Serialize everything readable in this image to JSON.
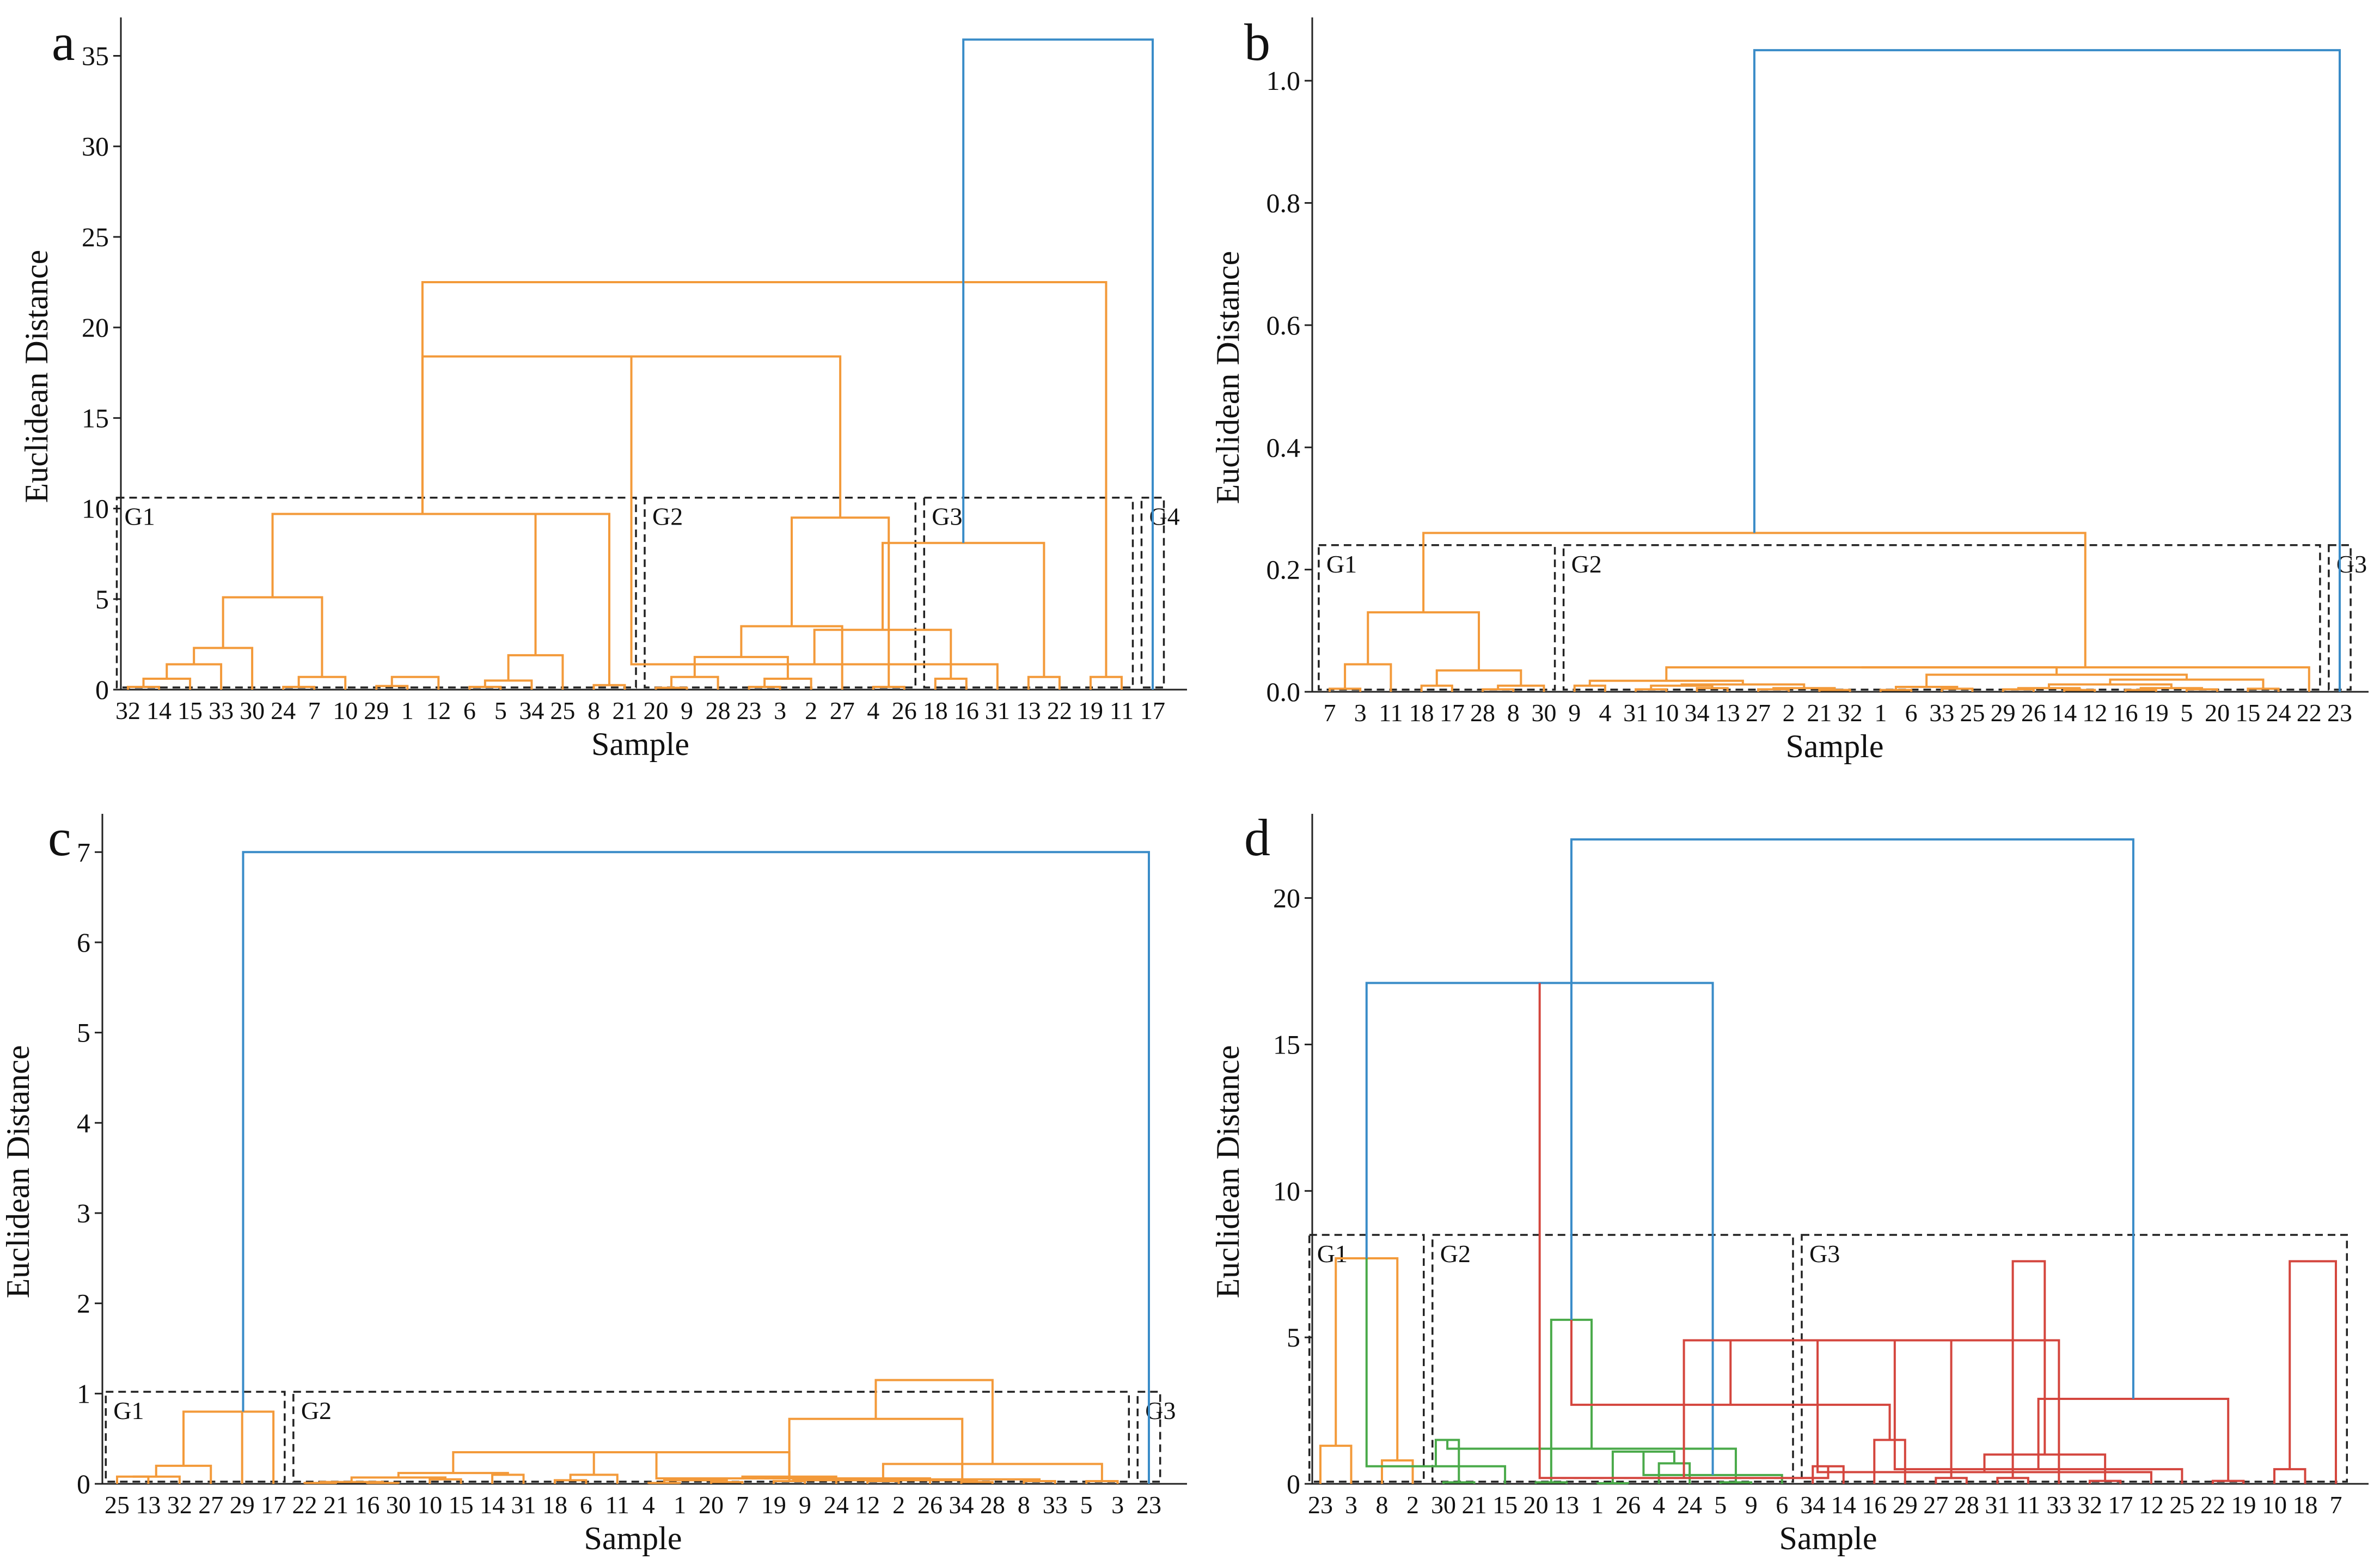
{
  "figure": {
    "axis_ylabel": "Euclidean Distance",
    "axis_xlabel": "Sample",
    "colors": {
      "orange": "#f39a3a",
      "blue": "#3a8cc8",
      "green": "#4aaa4a",
      "red": "#d4463e",
      "box": "#222222",
      "axis": "#222222"
    }
  },
  "chart_data": [
    {
      "type": "dendrogram",
      "panel_label": "a",
      "xlabel": "Sample",
      "ylabel": "Euclidean Distance",
      "ylim": [
        0,
        37
      ],
      "yticks": [
        0,
        5,
        10,
        15,
        20,
        25,
        30,
        35
      ],
      "tick_labels": [
        "0",
        "5",
        "10",
        "15",
        "20",
        "25",
        "30",
        "35"
      ],
      "leaves": [
        "32",
        "14",
        "15",
        "33",
        "30",
        "24",
        "7",
        "10",
        "29",
        "1",
        "12",
        "6",
        "5",
        "34",
        "25",
        "8",
        "21",
        "20",
        "9",
        "28",
        "23",
        "3",
        "2",
        "27",
        "4",
        "26",
        "18",
        "16",
        "31",
        "13",
        "22",
        "19",
        "11",
        "17"
      ],
      "merges": [
        [
          0,
          1,
          0.15,
          "orange"
        ],
        [
          2,
          34,
          0.6,
          "orange"
        ],
        [
          3,
          35,
          1.4,
          "orange"
        ],
        [
          4,
          36,
          2.3,
          "orange"
        ],
        [
          5,
          6,
          0.15,
          "orange"
        ],
        [
          7,
          38,
          0.7,
          "orange"
        ],
        [
          37,
          39,
          5.1,
          "orange"
        ],
        [
          8,
          9,
          0.2,
          "orange"
        ],
        [
          10,
          41,
          0.7,
          "orange"
        ],
        [
          11,
          12,
          0.15,
          "orange"
        ],
        [
          13,
          43,
          0.5,
          "orange"
        ],
        [
          14,
          44,
          1.9,
          "orange"
        ],
        [
          15,
          16,
          0.25,
          "orange"
        ],
        [
          45,
          46,
          9.7,
          "orange"
        ],
        [
          40,
          47,
          9.7,
          "orange"
        ],
        [
          17,
          18,
          0.1,
          "orange"
        ],
        [
          19,
          49,
          0.7,
          "orange"
        ],
        [
          20,
          21,
          0.15,
          "orange"
        ],
        [
          22,
          51,
          0.6,
          "orange"
        ],
        [
          50,
          52,
          1.8,
          "orange"
        ],
        [
          53,
          23,
          3.5,
          "orange"
        ],
        [
          24,
          25,
          0.15,
          "orange"
        ],
        [
          54,
          55,
          9.5,
          "orange"
        ],
        [
          48,
          56,
          18.4,
          "orange"
        ],
        [
          26,
          27,
          0.6,
          "orange"
        ],
        [
          57,
          28,
          1.4,
          "orange"
        ],
        [
          29,
          30,
          0.7,
          "orange"
        ],
        [
          58,
          59,
          3.3,
          "orange"
        ],
        [
          31,
          32,
          0.7,
          "orange"
        ],
        [
          60,
          61,
          8.1,
          "orange"
        ],
        [
          48,
          62,
          22.5,
          "orange"
        ],
        [
          63,
          33,
          35.9,
          "blue"
        ]
      ],
      "groups": [
        {
          "label": "G1",
          "from": 0,
          "to": 16,
          "top": 10.6
        },
        {
          "label": "G2",
          "from": 17,
          "to": 25,
          "top": 10.6
        },
        {
          "label": "G3",
          "from": 26,
          "to": 32,
          "top": 10.6
        },
        {
          "label": "G4",
          "from": 33,
          "to": 33,
          "top": 10.6
        }
      ]
    },
    {
      "type": "dendrogram",
      "panel_label": "b",
      "xlabel": "Sample",
      "ylabel": "Euclidean Distance",
      "ylim": [
        0,
        1.1
      ],
      "yticks": [
        0,
        0.2,
        0.4,
        0.6,
        0.8,
        1.0
      ],
      "tick_labels": [
        "0.0",
        "0.2",
        "0.4",
        "0.6",
        "0.8",
        "1.0"
      ],
      "leaves": [
        "7",
        "3",
        "11",
        "18",
        "17",
        "28",
        "8",
        "30",
        "9",
        "4",
        "31",
        "10",
        "34",
        "13",
        "27",
        "2",
        "21",
        "32",
        "1",
        "6",
        "33",
        "25",
        "29",
        "26",
        "14",
        "12",
        "16",
        "19",
        "5",
        "20",
        "15",
        "24",
        "22",
        "23"
      ],
      "merges": [
        [
          0,
          1,
          0.005,
          "orange"
        ],
        [
          2,
          34,
          0.045,
          "orange"
        ],
        [
          3,
          4,
          0.01,
          "orange"
        ],
        [
          5,
          6,
          0.004,
          "orange"
        ],
        [
          7,
          37,
          0.01,
          "orange"
        ],
        [
          36,
          38,
          0.035,
          "orange"
        ],
        [
          35,
          39,
          0.13,
          "orange"
        ],
        [
          8,
          9,
          0.01,
          "orange"
        ],
        [
          10,
          11,
          0.004,
          "orange"
        ],
        [
          12,
          13,
          0.006,
          "orange"
        ],
        [
          42,
          43,
          0.01,
          "orange"
        ],
        [
          14,
          15,
          0.004,
          "orange"
        ],
        [
          16,
          17,
          0.003,
          "orange"
        ],
        [
          45,
          46,
          0.006,
          "orange"
        ],
        [
          44,
          47,
          0.012,
          "orange"
        ],
        [
          41,
          48,
          0.018,
          "orange"
        ],
        [
          18,
          19,
          0.003,
          "orange"
        ],
        [
          20,
          21,
          0.005,
          "orange"
        ],
        [
          50,
          51,
          0.008,
          "orange"
        ],
        [
          22,
          23,
          0.004,
          "orange"
        ],
        [
          24,
          25,
          0.003,
          "orange"
        ],
        [
          53,
          54,
          0.006,
          "orange"
        ],
        [
          26,
          27,
          0.003,
          "orange"
        ],
        [
          28,
          29,
          0.004,
          "orange"
        ],
        [
          56,
          57,
          0.006,
          "orange"
        ],
        [
          55,
          58,
          0.012,
          "orange"
        ],
        [
          30,
          31,
          0.005,
          "orange"
        ],
        [
          59,
          60,
          0.02,
          "orange"
        ],
        [
          52,
          61,
          0.028,
          "orange"
        ],
        [
          49,
          62,
          0.04,
          "orange"
        ],
        [
          63,
          32,
          0.04,
          "orange"
        ],
        [
          40,
          64,
          0.26,
          "orange"
        ],
        [
          65,
          33,
          1.05,
          "blue"
        ]
      ],
      "groups": [
        {
          "label": "G1",
          "from": 0,
          "to": 7,
          "top": 0.24
        },
        {
          "label": "G2",
          "from": 8,
          "to": 32,
          "top": 0.24
        },
        {
          "label": "G3",
          "from": 33,
          "to": 33,
          "top": 0.24
        }
      ]
    },
    {
      "type": "dendrogram",
      "panel_label": "c",
      "xlabel": "Sample",
      "ylabel": "Euclidean Distance",
      "ylim": [
        0,
        7.4
      ],
      "yticks": [
        0,
        1,
        2,
        3,
        4,
        5,
        6,
        7
      ],
      "tick_labels": [
        "0",
        "1",
        "2",
        "3",
        "4",
        "5",
        "6",
        "7"
      ],
      "leaves": [
        "25",
        "13",
        "32",
        "27",
        "29",
        "17",
        "22",
        "21",
        "16",
        "30",
        "10",
        "15",
        "14",
        "31",
        "18",
        "6",
        "11",
        "4",
        "1",
        "20",
        "7",
        "19",
        "9",
        "24",
        "12",
        "2",
        "26",
        "34",
        "28",
        "8",
        "33",
        "5",
        "3",
        "23"
      ],
      "merges": [
        [
          0,
          1,
          0.08,
          "orange"
        ],
        [
          2,
          34,
          0.08,
          "orange"
        ],
        [
          3,
          35,
          0.2,
          "orange"
        ],
        [
          4,
          36,
          0.8,
          "orange"
        ],
        [
          6,
          7,
          0.01,
          "orange"
        ],
        [
          8,
          9,
          0.01,
          "orange"
        ],
        [
          38,
          39,
          0.02,
          "orange"
        ],
        [
          10,
          11,
          0.05,
          "orange"
        ],
        [
          40,
          41,
          0.07,
          "orange"
        ],
        [
          12,
          13,
          0.1,
          "orange"
        ],
        [
          42,
          43,
          0.12,
          "orange"
        ],
        [
          14,
          15,
          0.04,
          "orange"
        ],
        [
          45,
          16,
          0.1,
          "orange"
        ],
        [
          44,
          46,
          0.35,
          "orange"
        ],
        [
          17,
          18,
          0.01,
          "orange"
        ],
        [
          19,
          20,
          0.02,
          "orange"
        ],
        [
          48,
          49,
          0.04,
          "orange"
        ],
        [
          21,
          22,
          0.03,
          "orange"
        ],
        [
          50,
          51,
          0.06,
          "orange"
        ],
        [
          52,
          23,
          0.08,
          "orange"
        ],
        [
          47,
          53,
          0.35,
          "orange"
        ],
        [
          24,
          25,
          0.03,
          "orange"
        ],
        [
          54,
          26,
          0.06,
          "orange"
        ],
        [
          27,
          28,
          0.02,
          "orange"
        ],
        [
          29,
          30,
          0.03,
          "orange"
        ],
        [
          56,
          57,
          0.04,
          "orange"
        ],
        [
          31,
          32,
          0.03,
          "orange"
        ],
        [
          58,
          59,
          0.05,
          "orange"
        ],
        [
          55,
          60,
          0.22,
          "orange"
        ],
        [
          53,
          61,
          0.72,
          "orange"
        ],
        [
          37,
          5,
          0.8,
          "orange"
        ],
        [
          63,
          62,
          1.15,
          "orange"
        ],
        [
          64,
          33,
          7.0,
          "blue"
        ]
      ],
      "groups": [
        {
          "label": "G1",
          "from": 0,
          "to": 5,
          "top": 1.02
        },
        {
          "label": "G2",
          "from": 6,
          "to": 32,
          "top": 1.02
        },
        {
          "label": "G3",
          "from": 33,
          "to": 33,
          "top": 1.02
        }
      ]
    },
    {
      "type": "dendrogram",
      "panel_label": "d",
      "xlabel": "Sample",
      "ylabel": "Euclidean Distance",
      "ylim": [
        0,
        22.8
      ],
      "yticks": [
        0,
        5,
        10,
        15,
        20
      ],
      "tick_labels": [
        "0",
        "5",
        "10",
        "15",
        "20"
      ],
      "leaves": [
        "23",
        "3",
        "8",
        "2",
        "30",
        "21",
        "15",
        "20",
        "13",
        "1",
        "26",
        "4",
        "24",
        "5",
        "9",
        "6",
        "34",
        "14",
        "16",
        "29",
        "27",
        "28",
        "31",
        "11",
        "33",
        "32",
        "17",
        "12",
        "25",
        "22",
        "19",
        "10",
        "18",
        "7"
      ],
      "merges": [
        [
          0,
          1,
          1.3,
          "orange"
        ],
        [
          2,
          3,
          0.8,
          "orange"
        ],
        [
          34,
          35,
          7.7,
          "orange"
        ],
        [
          4,
          5,
          0.05,
          "green"
        ],
        [
          36,
          6,
          0.6,
          "green"
        ],
        [
          7,
          8,
          0.05,
          "green"
        ],
        [
          37,
          38,
          1.5,
          "green"
        ],
        [
          9,
          10,
          0.02,
          "green"
        ],
        [
          11,
          12,
          0.7,
          "green"
        ],
        [
          13,
          14,
          0.05,
          "green"
        ],
        [
          41,
          42,
          1.1,
          "green"
        ],
        [
          40,
          43,
          1.2,
          "green"
        ],
        [
          44,
          15,
          0.3,
          "green"
        ],
        [
          39,
          45,
          5.6,
          "green"
        ],
        [
          36,
          46,
          17.1,
          "blue"
        ],
        [
          16,
          17,
          0.6,
          "red"
        ],
        [
          18,
          19,
          1.5,
          "red"
        ],
        [
          20,
          21,
          0.2,
          "red"
        ],
        [
          48,
          49,
          0.2,
          "red"
        ],
        [
          47,
          50,
          2.7,
          "red"
        ],
        [
          22,
          23,
          0.2,
          "red"
        ],
        [
          51,
          52,
          4.9,
          "red"
        ],
        [
          53,
          24,
          4.9,
          "red"
        ],
        [
          25,
          26,
          0.1,
          "red"
        ],
        [
          27,
          55,
          0.4,
          "red"
        ],
        [
          28,
          56,
          0.5,
          "red"
        ],
        [
          29,
          30,
          0.1,
          "red"
        ],
        [
          57,
          58,
          1.0,
          "red"
        ],
        [
          31,
          32,
          0.5,
          "red"
        ],
        [
          59,
          60,
          2.9,
          "red"
        ],
        [
          54,
          61,
          7.6,
          "red"
        ],
        [
          33,
          62,
          7.6,
          "red"
        ],
        [
          47,
          63,
          22.0,
          "blue"
        ]
      ],
      "groups": [
        {
          "label": "G1",
          "from": 0,
          "to": 3,
          "top": 8.5
        },
        {
          "label": "G2",
          "from": 4,
          "to": 15,
          "top": 8.5
        },
        {
          "label": "G3",
          "from": 16,
          "to": 33,
          "top": 8.5
        }
      ]
    }
  ]
}
